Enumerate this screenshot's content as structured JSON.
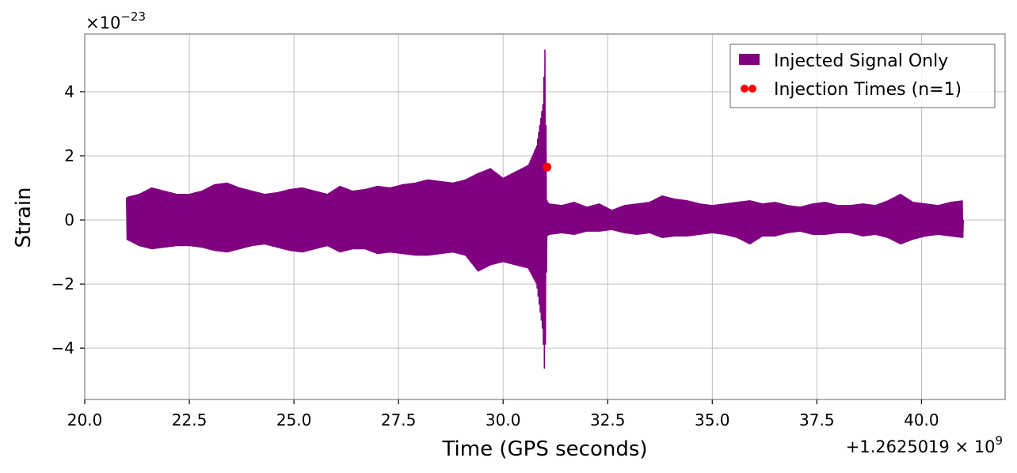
{
  "chart_data": {
    "type": "line",
    "title": "",
    "xlabel": "Time (GPS seconds)",
    "ylabel": "Strain",
    "x_offset_label": "+1.2625019 × 10",
    "x_offset_exponent": "9",
    "y_multiplier_label": "×10",
    "y_multiplier_exponent": "−23",
    "xlim": [
      20.0,
      42.0
    ],
    "ylim": [
      -5.6,
      5.8
    ],
    "grid": true,
    "legend_position": "top-right",
    "x_ticks": [
      {
        "value": 20.0,
        "label": "20.0"
      },
      {
        "value": 22.5,
        "label": "22.5"
      },
      {
        "value": 25.0,
        "label": "25.0"
      },
      {
        "value": 27.5,
        "label": "27.5"
      },
      {
        "value": 30.0,
        "label": "30.0"
      },
      {
        "value": 32.5,
        "label": "32.5"
      },
      {
        "value": 35.0,
        "label": "35.0"
      },
      {
        "value": 37.5,
        "label": "37.5"
      },
      {
        "value": 40.0,
        "label": "40.0"
      }
    ],
    "y_ticks": [
      {
        "value": 4,
        "label": "4"
      },
      {
        "value": 2,
        "label": "2"
      },
      {
        "value": 0,
        "label": "0"
      },
      {
        "value": -2,
        "label": "−2"
      },
      {
        "value": -4,
        "label": "−4"
      }
    ],
    "series": [
      {
        "name": "Injected Signal Only",
        "kind": "oscillating strain envelope",
        "color": "#800080",
        "envelope": {
          "x": [
            21.0,
            21.3,
            21.6,
            21.9,
            22.2,
            22.5,
            22.8,
            23.1,
            23.4,
            23.7,
            24.0,
            24.3,
            24.6,
            24.9,
            25.2,
            25.5,
            25.8,
            26.1,
            26.4,
            26.7,
            27.0,
            27.3,
            27.6,
            27.9,
            28.2,
            28.5,
            28.8,
            29.1,
            29.4,
            29.7,
            30.0,
            30.3,
            30.6,
            30.8,
            30.95,
            31.0,
            31.05,
            31.1,
            31.4,
            31.7,
            32.0,
            32.3,
            32.6,
            32.9,
            33.2,
            33.5,
            33.8,
            34.1,
            34.4,
            34.7,
            35.0,
            35.3,
            35.6,
            35.9,
            36.2,
            36.5,
            36.8,
            37.1,
            37.4,
            37.7,
            38.0,
            38.3,
            38.6,
            38.9,
            39.2,
            39.5,
            39.8,
            40.1,
            40.4,
            40.7,
            41.0
          ],
          "upper": [
            0.7,
            0.8,
            1.0,
            0.9,
            0.8,
            0.8,
            0.9,
            1.1,
            1.15,
            1.0,
            0.9,
            0.8,
            0.85,
            0.95,
            1.0,
            0.9,
            0.8,
            1.05,
            0.9,
            0.95,
            1.05,
            1.0,
            1.1,
            1.15,
            1.25,
            1.2,
            1.15,
            1.25,
            1.45,
            1.6,
            1.3,
            1.5,
            1.7,
            2.3,
            3.6,
            5.3,
            0.6,
            0.5,
            0.45,
            0.55,
            0.4,
            0.5,
            0.3,
            0.45,
            0.5,
            0.55,
            0.75,
            0.65,
            0.6,
            0.5,
            0.45,
            0.5,
            0.55,
            0.6,
            0.5,
            0.55,
            0.45,
            0.4,
            0.5,
            0.55,
            0.45,
            0.45,
            0.5,
            0.45,
            0.6,
            0.8,
            0.55,
            0.5,
            0.45,
            0.55,
            0.6
          ],
          "lower": [
            -0.6,
            -0.8,
            -0.9,
            -0.85,
            -0.8,
            -0.8,
            -0.85,
            -0.95,
            -1.0,
            -0.9,
            -0.8,
            -0.75,
            -0.85,
            -0.95,
            -1.0,
            -0.9,
            -0.8,
            -1.0,
            -0.9,
            -0.9,
            -1.05,
            -1.0,
            -1.05,
            -1.1,
            -1.1,
            -1.05,
            -1.0,
            -1.1,
            -1.6,
            -1.4,
            -1.3,
            -1.4,
            -1.5,
            -2.0,
            -3.5,
            -5.0,
            -0.5,
            -0.45,
            -0.4,
            -0.45,
            -0.35,
            -0.35,
            -0.3,
            -0.4,
            -0.45,
            -0.4,
            -0.55,
            -0.5,
            -0.5,
            -0.45,
            -0.4,
            -0.45,
            -0.55,
            -0.75,
            -0.5,
            -0.5,
            -0.4,
            -0.35,
            -0.45,
            -0.45,
            -0.4,
            -0.4,
            -0.5,
            -0.45,
            -0.55,
            -0.75,
            -0.6,
            -0.5,
            -0.45,
            -0.5,
            -0.55
          ]
        }
      },
      {
        "name": "Injection Times (n=1)",
        "kind": "markers",
        "color": "#ff0000",
        "points": [
          {
            "x": 31.05,
            "y": 1.65
          }
        ]
      }
    ]
  }
}
